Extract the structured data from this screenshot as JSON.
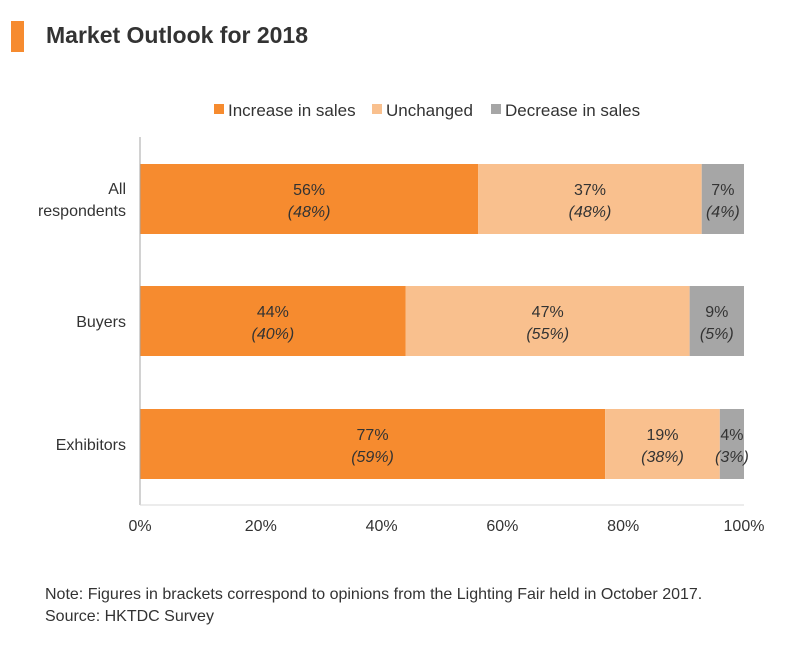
{
  "header": {
    "title": "Market Outlook for 2018",
    "marker_color": "#f68b2f"
  },
  "chart_data": {
    "type": "bar",
    "orientation": "horizontal",
    "stacked": true,
    "title": "Market Outlook for 2018",
    "categories": [
      "All respondents",
      "Buyers",
      "Exhibitors"
    ],
    "category_lines": [
      [
        "All",
        "respondents"
      ],
      [
        "Buyers"
      ],
      [
        "Exhibitors"
      ]
    ],
    "series": [
      {
        "name": "Increase in sales",
        "color": "#f68b2f",
        "values": [
          56,
          44,
          77
        ],
        "labels": [
          "56%",
          "44%",
          "77%"
        ],
        "bracket_labels": [
          "(48%)",
          "(40%)",
          "(59%)"
        ]
      },
      {
        "name": "Unchanged",
        "color": "#f9c08e",
        "values": [
          37,
          47,
          19
        ],
        "labels": [
          "37%",
          "47%",
          "19%"
        ],
        "bracket_labels": [
          "(48%)",
          "(55%)",
          "(38%)"
        ]
      },
      {
        "name": "Decrease in sales",
        "color": "#a6a6a6",
        "values": [
          7,
          9,
          4
        ],
        "labels": [
          "7%",
          "9%",
          "4%"
        ],
        "bracket_labels": [
          "(4%)",
          "(5%)",
          "(3%)"
        ]
      }
    ],
    "xlim": [
      0,
      100
    ],
    "x_ticks": [
      0,
      20,
      40,
      60,
      80,
      100
    ],
    "x_tick_labels": [
      "0%",
      "20%",
      "40%",
      "60%",
      "80%",
      "100%"
    ],
    "legend_position": "top",
    "grid": false
  },
  "notes": {
    "note": "Note: Figures in brackets correspond to opinions from the Lighting Fair held in October 2017.",
    "source": "Source: HKTDC Survey"
  }
}
